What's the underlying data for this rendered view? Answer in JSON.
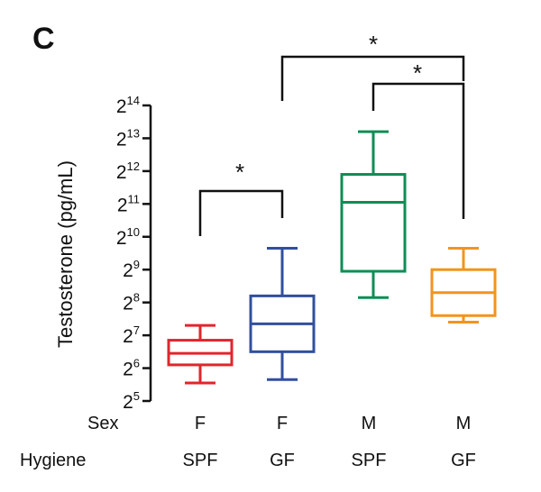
{
  "chart_data": {
    "type": "boxplot",
    "panel_label": "C",
    "ylabel": "Testosterone (pg/mL)",
    "y_scale": "log2",
    "y_tick_base": "2",
    "y_ticks": [
      5,
      6,
      7,
      8,
      9,
      10,
      11,
      12,
      13,
      14
    ],
    "ylim": [
      5,
      14
    ],
    "row_labels": {
      "sex": "Sex",
      "hygiene": "Hygiene"
    },
    "groups": [
      {
        "sex": "F",
        "hygiene": "SPF",
        "color": "#e0262c",
        "stats": {
          "min": 5.55,
          "q1": 6.1,
          "median": 6.45,
          "q3": 6.85,
          "max": 7.3
        }
      },
      {
        "sex": "F",
        "hygiene": "GF",
        "color": "#304f9e",
        "stats": {
          "min": 5.65,
          "q1": 6.5,
          "median": 7.35,
          "q3": 8.2,
          "max": 9.65
        }
      },
      {
        "sex": "M",
        "hygiene": "SPF",
        "color": "#0f8d55",
        "stats": {
          "min": 8.15,
          "q1": 8.95,
          "median": 11.05,
          "q3": 11.9,
          "max": 13.2
        }
      },
      {
        "sex": "M",
        "hygiene": "GF",
        "color": "#f2941d",
        "stats": {
          "min": 7.4,
          "q1": 7.6,
          "median": 8.3,
          "q3": 9.0,
          "max": 9.65
        }
      }
    ],
    "significance": [
      {
        "from": 0,
        "to": 1,
        "label": "*"
      },
      {
        "from": 1,
        "to": 3,
        "label": "*"
      },
      {
        "from": 2,
        "to": 3,
        "label": "*"
      }
    ]
  }
}
